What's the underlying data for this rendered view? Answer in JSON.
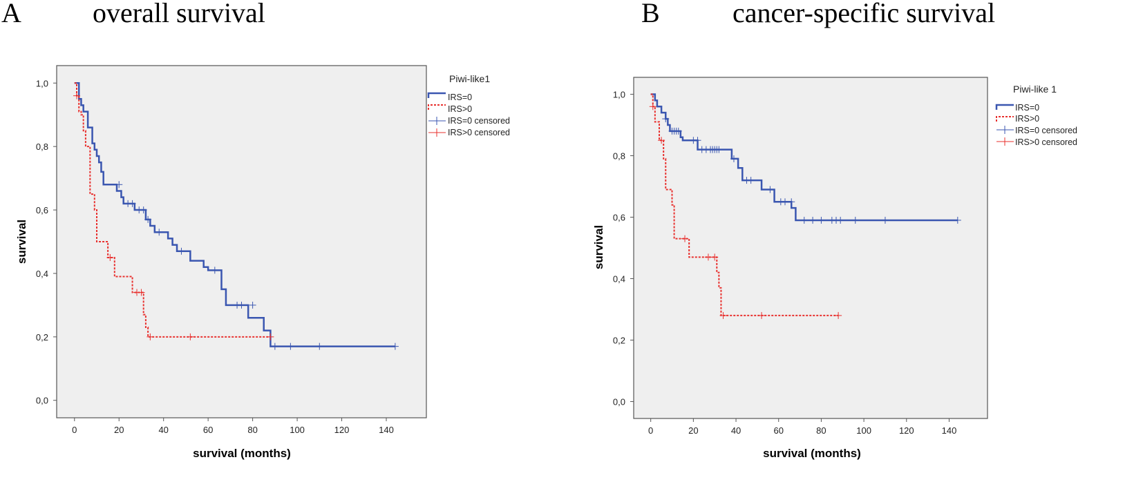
{
  "colors": {
    "irs0": "#3a56b0",
    "irs_gt0": "#e8302e",
    "plot_bg": "#efefef",
    "frame": "#555555"
  },
  "chart_data": [
    {
      "type": "line",
      "panel": "A",
      "title": "overall survival",
      "xlabel": "survival (months)",
      "ylabel": "survival",
      "xlim": [
        -8,
        158
      ],
      "ylim": [
        -0.055,
        1.055
      ],
      "xticks": [
        0,
        20,
        40,
        60,
        80,
        100,
        120,
        140
      ],
      "yticks": [
        0.0,
        0.2,
        0.4,
        0.6,
        0.8,
        1.0
      ],
      "xtick_labels": [
        "0",
        "20",
        "40",
        "60",
        "80",
        "100",
        "120",
        "140"
      ],
      "ytick_labels": [
        "0,0",
        "0,2",
        "0,4",
        "0,6",
        "0,8",
        "1,0"
      ],
      "legend": {
        "title": "Piwi-like1",
        "position": "right",
        "entries": [
          "IRS=0",
          "IRS>0",
          "IRS=0 censored",
          "IRS>0 censored"
        ]
      },
      "series": [
        {
          "name": "IRS=0",
          "style": "solid",
          "color": "#3a56b0",
          "steps": [
            [
              0,
              1.0
            ],
            [
              2,
              0.95
            ],
            [
              3,
              0.93
            ],
            [
              4,
              0.91
            ],
            [
              6,
              0.86
            ],
            [
              8,
              0.81
            ],
            [
              9,
              0.79
            ],
            [
              10,
              0.77
            ],
            [
              11,
              0.75
            ],
            [
              12,
              0.72
            ],
            [
              13,
              0.68
            ],
            [
              19,
              0.66
            ],
            [
              21,
              0.64
            ],
            [
              22,
              0.62
            ],
            [
              27,
              0.6
            ],
            [
              32,
              0.57
            ],
            [
              34,
              0.55
            ],
            [
              36,
              0.53
            ],
            [
              42,
              0.51
            ],
            [
              44,
              0.49
            ],
            [
              46,
              0.47
            ],
            [
              52,
              0.44
            ],
            [
              58,
              0.42
            ],
            [
              60,
              0.41
            ],
            [
              66,
              0.35
            ],
            [
              68,
              0.3
            ],
            [
              78,
              0.26
            ],
            [
              85,
              0.22
            ],
            [
              88,
              0.17
            ],
            [
              144,
              0.17
            ]
          ],
          "censored": [
            [
              20,
              0.68
            ],
            [
              24,
              0.62
            ],
            [
              26,
              0.62
            ],
            [
              29,
              0.6
            ],
            [
              31,
              0.6
            ],
            [
              33,
              0.57
            ],
            [
              38,
              0.53
            ],
            [
              48,
              0.47
            ],
            [
              63,
              0.41
            ],
            [
              73,
              0.3
            ],
            [
              75,
              0.3
            ],
            [
              80,
              0.3
            ],
            [
              90,
              0.17
            ],
            [
              97,
              0.17
            ],
            [
              110,
              0.17
            ],
            [
              144,
              0.17
            ]
          ]
        },
        {
          "name": "IRS>0",
          "style": "dashed",
          "color": "#e8302e",
          "steps": [
            [
              0,
              1.0
            ],
            [
              1,
              0.96
            ],
            [
              2,
              0.91
            ],
            [
              3,
              0.9
            ],
            [
              4,
              0.85
            ],
            [
              5,
              0.8
            ],
            [
              7,
              0.65
            ],
            [
              9,
              0.6
            ],
            [
              10,
              0.5
            ],
            [
              15,
              0.45
            ],
            [
              18,
              0.39
            ],
            [
              26,
              0.34
            ],
            [
              31,
              0.27
            ],
            [
              32,
              0.23
            ],
            [
              33,
              0.2
            ],
            [
              88,
              0.2
            ]
          ],
          "censored": [
            [
              1,
              0.96
            ],
            [
              16,
              0.45
            ],
            [
              28,
              0.34
            ],
            [
              30,
              0.34
            ],
            [
              34,
              0.2
            ],
            [
              52,
              0.2
            ],
            [
              88,
              0.2
            ]
          ]
        }
      ]
    },
    {
      "type": "line",
      "panel": "B",
      "title": "cancer-specific survival",
      "xlabel": "survival (months)",
      "ylabel": "survival",
      "xlim": [
        -8,
        158
      ],
      "ylim": [
        -0.055,
        1.055
      ],
      "xticks": [
        0,
        20,
        40,
        60,
        80,
        100,
        120,
        140
      ],
      "yticks": [
        0.0,
        0.2,
        0.4,
        0.6,
        0.8,
        1.0
      ],
      "xtick_labels": [
        "0",
        "20",
        "40",
        "60",
        "80",
        "100",
        "120",
        "140"
      ],
      "ytick_labels": [
        "0,0",
        "0,2",
        "0,4",
        "0,6",
        "0,8",
        "1,0"
      ],
      "legend": {
        "title": "Piwi-like 1",
        "position": "right",
        "entries": [
          "IRS=0",
          "IRS>0",
          "IRS=0 censored",
          "IRS>0 censored"
        ]
      },
      "series": [
        {
          "name": "IRS=0",
          "style": "solid",
          "color": "#3a56b0",
          "steps": [
            [
              0,
              1.0
            ],
            [
              2,
              0.98
            ],
            [
              3,
              0.96
            ],
            [
              5,
              0.94
            ],
            [
              7,
              0.92
            ],
            [
              8,
              0.9
            ],
            [
              9,
              0.88
            ],
            [
              14,
              0.86
            ],
            [
              15,
              0.85
            ],
            [
              22,
              0.82
            ],
            [
              38,
              0.79
            ],
            [
              41,
              0.76
            ],
            [
              43,
              0.72
            ],
            [
              52,
              0.69
            ],
            [
              58,
              0.65
            ],
            [
              66,
              0.63
            ],
            [
              68,
              0.59
            ],
            [
              144,
              0.59
            ]
          ],
          "censored": [
            [
              7,
              0.92
            ],
            [
              10,
              0.88
            ],
            [
              11,
              0.88
            ],
            [
              12,
              0.88
            ],
            [
              13,
              0.88
            ],
            [
              20,
              0.85
            ],
            [
              22,
              0.85
            ],
            [
              24,
              0.82
            ],
            [
              26,
              0.82
            ],
            [
              28,
              0.82
            ],
            [
              29,
              0.82
            ],
            [
              30,
              0.82
            ],
            [
              31,
              0.82
            ],
            [
              32,
              0.82
            ],
            [
              39,
              0.79
            ],
            [
              45,
              0.72
            ],
            [
              47,
              0.72
            ],
            [
              56,
              0.69
            ],
            [
              61,
              0.65
            ],
            [
              63,
              0.65
            ],
            [
              66,
              0.65
            ],
            [
              72,
              0.59
            ],
            [
              76,
              0.59
            ],
            [
              80,
              0.59
            ],
            [
              85,
              0.59
            ],
            [
              87,
              0.59
            ],
            [
              89,
              0.59
            ],
            [
              96,
              0.59
            ],
            [
              110,
              0.59
            ],
            [
              144,
              0.59
            ]
          ]
        },
        {
          "name": "IRS>0",
          "style": "dashed",
          "color": "#e8302e",
          "steps": [
            [
              0,
              1.0
            ],
            [
              1,
              0.96
            ],
            [
              2,
              0.91
            ],
            [
              4,
              0.85
            ],
            [
              6,
              0.79
            ],
            [
              7,
              0.69
            ],
            [
              10,
              0.64
            ],
            [
              11,
              0.53
            ],
            [
              18,
              0.47
            ],
            [
              31,
              0.42
            ],
            [
              32,
              0.37
            ],
            [
              33,
              0.28
            ],
            [
              88,
              0.28
            ]
          ],
          "censored": [
            [
              1,
              0.96
            ],
            [
              5,
              0.85
            ],
            [
              16,
              0.53
            ],
            [
              27,
              0.47
            ],
            [
              30,
              0.47
            ],
            [
              34,
              0.28
            ],
            [
              52,
              0.28
            ],
            [
              88,
              0.28
            ]
          ]
        }
      ]
    }
  ]
}
